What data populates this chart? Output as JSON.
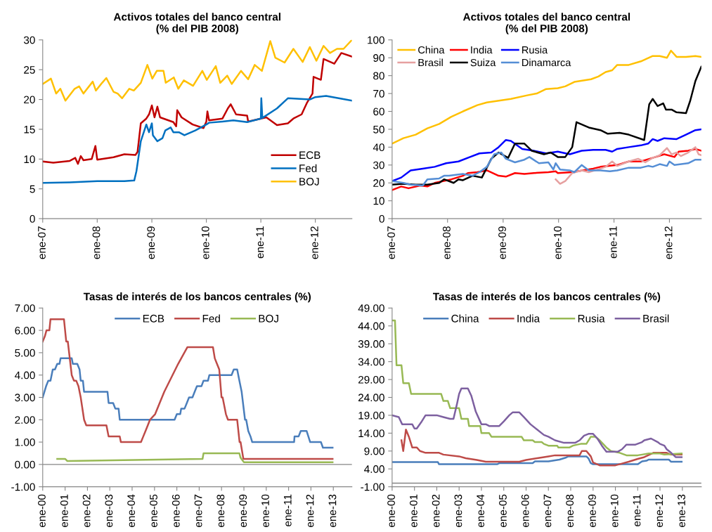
{
  "chart_data": [
    {
      "type": "line",
      "title": "Activos totales del banco central\n(% del PIB 2008)",
      "legend": "bottom right",
      "xlim": [
        "2007-01-01",
        "2012-09-02"
      ],
      "xticks": [
        {
          "value": "2007-01-01",
          "label": "ene-07"
        },
        {
          "value": "2008-01-01",
          "label": "ene-08"
        },
        {
          "value": "2009-01-01",
          "label": "ene-09"
        },
        {
          "value": "2010-01-01",
          "label": "ene-10"
        },
        {
          "value": "2011-01-01",
          "label": "ene-11"
        },
        {
          "value": "2012-01-01",
          "label": "ene-12"
        }
      ],
      "ylim": [
        0,
        30
      ],
      "yticks": [
        0,
        5,
        10,
        15,
        20,
        25,
        30
      ],
      "series": [
        {
          "name": "ECB",
          "color": "#c00000",
          "x": [
            "2007-01-01",
            "2007-03-13",
            "2007-07-01",
            "2007-08-07",
            "2007-08-25",
            "2007-09-13",
            "2007-10-01",
            "2007-11-25",
            "2007-12-20",
            "2008-01-01",
            "2008-04-19",
            "2008-07-01",
            "2008-09-13",
            "2008-09-27",
            "2008-10-19",
            "2008-11-25",
            "2008-12-13",
            "2009-01-01",
            "2009-01-19",
            "2009-02-07",
            "2009-02-25",
            "2009-05-25",
            "2009-06-13",
            "2009-06-20",
            "2009-07-19",
            "2009-10-01",
            "2009-12-13",
            "2010-01-01",
            "2010-01-08",
            "2010-01-19",
            "2010-04-19",
            "2010-05-25",
            "2010-06-13",
            "2010-07-19",
            "2010-10-01",
            "2010-10-08",
            "2011-01-01",
            "2011-02-07",
            "2011-04-19",
            "2011-07-01",
            "2011-08-07",
            "2011-10-01",
            "2011-11-07",
            "2011-12-13",
            "2011-12-20",
            "2012-02-07",
            "2012-02-25",
            "2012-05-07",
            "2012-06-23",
            "2012-09-02"
          ],
          "values": [
            9.6,
            9.4,
            9.7,
            10.2,
            9.2,
            10.5,
            9.8,
            10.0,
            12.2,
            9.9,
            10.3,
            10.8,
            10.7,
            11.2,
            16.0,
            16.8,
            17.5,
            19.0,
            17.0,
            18.8,
            17.0,
            16.2,
            15.5,
            18.2,
            17.0,
            15.8,
            15.2,
            16.3,
            18.0,
            16.5,
            16.8,
            18.5,
            19.2,
            17.5,
            17.3,
            16.3,
            16.8,
            17.0,
            15.7,
            16.0,
            16.8,
            17.5,
            19.5,
            21.0,
            23.8,
            23.3,
            26.8,
            26.0,
            27.8,
            27.2
          ]
        },
        {
          "name": "Fed",
          "color": "#0070c0",
          "x": [
            "2007-01-01",
            "2007-07-01",
            "2008-01-01",
            "2008-07-01",
            "2008-09-05",
            "2008-09-20",
            "2008-10-19",
            "2008-11-25",
            "2008-12-13",
            "2009-01-01",
            "2009-01-08",
            "2009-02-07",
            "2009-03-13",
            "2009-04-01",
            "2009-05-07",
            "2009-05-25",
            "2009-07-01",
            "2009-08-07",
            "2009-10-19",
            "2010-01-01",
            "2010-01-19",
            "2010-04-19",
            "2010-07-01",
            "2010-10-01",
            "2011-01-01",
            "2011-01-04",
            "2011-01-11",
            "2011-04-19",
            "2011-07-01",
            "2011-11-25",
            "2012-01-01",
            "2012-03-13",
            "2012-07-01",
            "2012-09-02"
          ],
          "values": [
            6.0,
            6.1,
            6.3,
            6.3,
            6.4,
            8.0,
            13.0,
            15.8,
            14.5,
            16.0,
            14.0,
            13.0,
            13.5,
            14.8,
            15.3,
            14.5,
            14.5,
            14.0,
            14.8,
            15.8,
            16.1,
            16.3,
            16.5,
            16.2,
            16.8,
            20.2,
            16.9,
            18.5,
            20.2,
            20.0,
            20.4,
            20.6,
            20.1,
            19.8
          ]
        },
        {
          "name": "BOJ",
          "color": "#ffc000",
          "x": [
            "2007-01-01",
            "2007-02-25",
            "2007-04-01",
            "2007-04-29",
            "2007-06-02",
            "2007-08-03",
            "2007-09-02",
            "2007-10-01",
            "2007-12-02",
            "2007-12-23",
            "2008-02-03",
            "2008-03-02",
            "2008-04-19",
            "2008-05-17",
            "2008-06-16",
            "2008-08-03",
            "2008-09-02",
            "2008-10-19",
            "2008-12-02",
            "2009-01-04",
            "2009-02-03",
            "2009-03-20",
            "2009-04-04",
            "2009-05-28",
            "2009-06-27",
            "2009-08-03",
            "2009-10-04",
            "2009-12-05",
            "2010-01-04",
            "2010-03-05",
            "2010-04-04",
            "2010-05-21",
            "2010-06-20",
            "2010-08-21",
            "2010-10-08",
            "2010-11-21",
            "2011-01-08",
            "2011-03-05",
            "2011-04-08",
            "2011-06-09",
            "2011-08-07",
            "2011-10-08",
            "2011-11-25",
            "2012-01-08",
            "2012-02-25",
            "2012-04-08",
            "2012-05-25",
            "2012-07-08",
            "2012-09-02"
          ],
          "values": [
            22.6,
            23.5,
            21.0,
            21.8,
            19.8,
            21.8,
            22.2,
            21.0,
            23.0,
            21.5,
            22.8,
            23.6,
            21.3,
            21.0,
            20.2,
            21.8,
            21.5,
            22.8,
            25.8,
            23.5,
            24.8,
            24.8,
            22.8,
            23.7,
            21.8,
            23.2,
            22.3,
            24.8,
            23.3,
            25.6,
            22.8,
            24.0,
            22.6,
            24.8,
            23.4,
            25.8,
            24.8,
            29.8,
            27.0,
            26.2,
            28.5,
            26.3,
            28.8,
            26.5,
            29.0,
            27.8,
            28.5,
            28.5,
            30.0
          ]
        }
      ]
    },
    {
      "type": "line",
      "title": "Activos totales del banco central\n(% del PIB 2008)",
      "legend": "top left",
      "xlim": [
        "2007-01-01",
        "2012-07-29"
      ],
      "xticks": [
        {
          "value": "2007-01-01",
          "label": "ene-07"
        },
        {
          "value": "2008-01-01",
          "label": "ene-08"
        },
        {
          "value": "2009-01-01",
          "label": "ene-09"
        },
        {
          "value": "2010-01-01",
          "label": "ene-10"
        },
        {
          "value": "2011-01-01",
          "label": "ene-11"
        },
        {
          "value": "2012-01-01",
          "label": "ene-12"
        }
      ],
      "ylim": [
        0,
        100
      ],
      "yticks": [
        0,
        10,
        20,
        30,
        40,
        50,
        60,
        70,
        80,
        90,
        100
      ],
      "series": [
        {
          "name": "China",
          "color": "#ffc000",
          "x": [
            "2007-01-01",
            "2007-03-16",
            "2007-06-05",
            "2007-08-21",
            "2007-11-07",
            "2008-01-26",
            "2008-04-11",
            "2008-07-15",
            "2008-09-16",
            "2009-02-21",
            "2009-06-09",
            "2009-08-10",
            "2009-10-11",
            "2009-12-27",
            "2010-02-14",
            "2010-04-15",
            "2010-08-03",
            "2010-09-20",
            "2010-11-07",
            "2010-12-20",
            "2011-01-22",
            "2011-04-08",
            "2011-06-27",
            "2011-09-13",
            "2011-10-29",
            "2011-12-16",
            "2012-01-11",
            "2012-02-17",
            "2012-04-19",
            "2012-06-20",
            "2012-07-29"
          ],
          "values": [
            42,
            45,
            47,
            50.5,
            53,
            57,
            60,
            63.5,
            65,
            67,
            69,
            70,
            72.5,
            73,
            74,
            76.5,
            78,
            79.5,
            82,
            83,
            86,
            86,
            88,
            91,
            91,
            90,
            94,
            90.5,
            90.5,
            91,
            90.5
          ]
        },
        {
          "name": "India",
          "color": "#ff0000",
          "x": [
            "2007-01-01",
            "2007-03-02",
            "2007-04-19",
            "2007-07-04",
            "2007-08-21",
            "2007-10-08",
            "2008-01-26",
            "2008-04-11",
            "2008-05-14",
            "2008-07-15",
            "2008-09-16",
            "2008-12-02",
            "2009-01-19",
            "2009-03-20",
            "2009-05-21",
            "2009-07-22",
            "2009-10-26",
            "2009-12-13",
            "2009-12-27",
            "2010-04-01",
            "2010-08-17",
            "2010-10-04",
            "2011-01-22",
            "2011-04-08",
            "2011-06-27",
            "2011-09-13",
            "2011-11-28",
            "2012-02-03",
            "2012-03-02",
            "2012-05-03",
            "2012-06-20",
            "2012-07-29"
          ],
          "values": [
            16,
            18,
            17,
            18.5,
            18,
            20,
            22,
            24,
            25.5,
            26,
            27,
            24,
            23.5,
            25.5,
            25,
            25.5,
            26,
            26.5,
            25.5,
            26,
            28,
            29,
            30,
            32,
            32,
            34,
            36,
            34.5,
            37.5,
            38,
            39,
            38
          ]
        },
        {
          "name": "Rusia",
          "color": "#0000ff",
          "x": [
            "2007-01-01",
            "2007-03-02",
            "2007-05-03",
            "2007-07-22",
            "2007-10-08",
            "2007-12-23",
            "2008-03-13",
            "2008-05-28",
            "2008-07-29",
            "2008-10-15",
            "2008-12-02",
            "2009-01-19",
            "2009-02-21",
            "2009-05-07",
            "2009-07-22",
            "2009-10-11",
            "2009-12-27",
            "2010-03-16",
            "2010-06-02",
            "2010-08-17",
            "2010-11-07",
            "2010-12-20",
            "2011-01-22",
            "2011-04-08",
            "2011-06-27",
            "2011-08-14",
            "2011-09-13",
            "2011-10-15",
            "2011-11-28",
            "2012-02-17",
            "2012-04-19",
            "2012-06-20",
            "2012-07-29"
          ],
          "values": [
            21,
            23,
            27,
            28,
            29,
            31,
            32,
            34.5,
            36.5,
            37,
            40,
            44,
            43.5,
            39,
            38,
            36.5,
            37.5,
            36,
            38,
            38.5,
            38.5,
            37.5,
            39,
            40,
            41,
            42,
            44.5,
            43.5,
            45,
            44.5,
            47,
            49.5,
            50
          ]
        },
        {
          "name": "Brasil",
          "color": "#e6a0a0",
          "x": [
            "2009-12-13",
            "2010-01-11",
            "2010-02-14",
            "2010-04-01",
            "2010-06-02",
            "2010-07-19",
            "2010-10-04",
            "2010-11-07",
            "2010-12-20",
            "2011-01-22",
            "2011-04-08",
            "2011-06-09",
            "2011-07-26",
            "2011-09-13",
            "2011-10-29",
            "2011-12-16",
            "2012-01-15",
            "2012-02-17",
            "2012-03-16",
            "2012-05-03",
            "2012-06-20",
            "2012-07-11",
            "2012-07-29"
          ],
          "values": [
            22,
            19.5,
            21,
            25.5,
            27,
            26,
            28,
            29,
            32,
            29.5,
            32,
            33.5,
            31.5,
            34,
            35.5,
            39.5,
            36,
            37,
            35,
            37,
            40,
            36,
            35.5
          ]
        },
        {
          "name": "Suiza",
          "color": "#000000",
          "x": [
            "2007-01-01",
            "2007-03-16",
            "2007-06-05",
            "2007-08-21",
            "2007-11-07",
            "2007-12-09",
            "2008-01-11",
            "2008-02-10",
            "2008-03-13",
            "2008-04-11",
            "2008-06-13",
            "2008-08-14",
            "2008-10-15",
            "2008-12-02",
            "2009-02-03",
            "2009-03-20",
            "2009-05-21",
            "2009-07-08",
            "2009-09-27",
            "2009-11-10",
            "2009-12-27",
            "2010-02-14",
            "2010-04-01",
            "2010-04-29",
            "2010-07-19",
            "2010-10-04",
            "2010-11-21",
            "2011-02-07",
            "2011-04-08",
            "2011-07-19",
            "2011-08-21",
            "2011-09-13",
            "2011-10-15",
            "2011-11-21",
            "2011-12-09",
            "2012-01-15",
            "2012-02-17",
            "2012-04-19",
            "2012-05-17",
            "2012-06-20",
            "2012-07-29"
          ],
          "values": [
            19,
            19.5,
            19,
            19,
            20,
            22,
            21,
            20,
            22,
            21.5,
            24,
            23,
            33.5,
            37,
            34,
            42,
            42,
            38,
            36,
            37,
            34.5,
            34.5,
            40,
            54,
            51,
            49.5,
            47.5,
            48,
            47,
            44,
            64,
            67,
            63,
            64.5,
            61,
            61,
            59.5,
            59,
            66,
            77,
            85
          ]
        },
        {
          "name": "Dinamarca",
          "color": "#558ed5",
          "x": [
            "2007-01-01",
            "2007-03-16",
            "2007-05-03",
            "2007-07-22",
            "2007-08-21",
            "2007-11-07",
            "2007-12-09",
            "2008-01-11",
            "2008-04-11",
            "2008-06-13",
            "2008-07-29",
            "2008-09-16",
            "2008-11-03",
            "2008-12-20",
            "2009-01-19",
            "2009-03-20",
            "2009-05-21",
            "2009-06-23",
            "2009-08-25",
            "2009-10-26",
            "2009-11-28",
            "2009-12-13",
            "2010-01-11",
            "2010-03-16",
            "2010-04-15",
            "2010-06-02",
            "2010-07-19",
            "2010-10-04",
            "2010-12-05",
            "2011-01-22",
            "2011-04-08",
            "2011-06-27",
            "2011-08-14",
            "2011-09-13",
            "2011-10-29",
            "2011-12-16",
            "2012-01-01",
            "2012-02-03",
            "2012-05-03",
            "2012-06-20",
            "2012-07-29"
          ],
          "values": [
            21,
            20,
            19,
            18.5,
            22,
            22.5,
            24,
            24,
            25,
            24,
            26,
            29,
            36,
            37,
            33.5,
            31.5,
            33,
            34.5,
            31,
            31.5,
            27.5,
            31,
            27.5,
            27,
            26,
            30,
            27,
            27,
            26.5,
            27,
            28.5,
            28.5,
            29.5,
            29,
            30.5,
            29.5,
            32,
            30,
            31,
            33,
            33
          ]
        }
      ]
    },
    {
      "type": "line",
      "title": "Tasas de interés de los bancos centrales (%)",
      "legend": "top",
      "xlim": [
        "2000-01-01",
        "2013-11-01"
      ],
      "xticks": [
        {
          "value": "2000-01-01",
          "label": "ene-00"
        },
        {
          "value": "2001-01-01",
          "label": "ene-01"
        },
        {
          "value": "2002-01-01",
          "label": "ene-02"
        },
        {
          "value": "2003-01-01",
          "label": "ene-03"
        },
        {
          "value": "2004-01-01",
          "label": "ene-04"
        },
        {
          "value": "2005-01-01",
          "label": "ene-05"
        },
        {
          "value": "2006-01-01",
          "label": "ene-06"
        },
        {
          "value": "2007-01-01",
          "label": "ene-07"
        },
        {
          "value": "2008-01-01",
          "label": "ene-08"
        },
        {
          "value": "2009-01-01",
          "label": "ene-09"
        },
        {
          "value": "2010-01-01",
          "label": "ene-10"
        },
        {
          "value": "2011-01-01",
          "label": "ene-11"
        },
        {
          "value": "2012-01-01",
          "label": "ene-12"
        },
        {
          "value": "2013-01-01",
          "label": "ene-13"
        }
      ],
      "ylim": [
        -1,
        7
      ],
      "yticks": [
        {
          "value": -1,
          "label": "-1.00"
        },
        {
          "value": 0,
          "label": "0.00"
        },
        {
          "value": 1,
          "label": "1.00"
        },
        {
          "value": 2,
          "label": "2.00"
        },
        {
          "value": 3,
          "label": "3.00"
        },
        {
          "value": 4,
          "label": "4.00"
        },
        {
          "value": 5,
          "label": "5.00"
        },
        {
          "value": 6,
          "label": "6.00"
        },
        {
          "value": 7,
          "label": "7.00"
        }
      ],
      "ref_lines": [
        {
          "axis": "y",
          "value": 0,
          "color": "#868686"
        }
      ],
      "series": [
        {
          "name": "ECB",
          "color": "#4a7ebb",
          "x": [
            "2000-01-01",
            "2000-02-25",
            "2000-04-01",
            "2000-05-07",
            "2000-06-13",
            "2000-07-19",
            "2000-08-25",
            "2000-10-01",
            "2000-10-19",
            "2001-04-19",
            "2001-05-07",
            "2001-07-19",
            "2001-08-25",
            "2001-09-13",
            "2001-10-19",
            "2001-11-07",
            "2002-11-25",
            "2002-12-13",
            "2003-02-25",
            "2003-04-01",
            "2003-05-25",
            "2003-06-13",
            "2005-11-25",
            "2006-01-01",
            "2006-02-25",
            "2006-03-13",
            "2006-05-07",
            "2006-06-13",
            "2006-07-19",
            "2006-09-13",
            "2006-10-19",
            "2006-11-25",
            "2007-02-07",
            "2007-03-13",
            "2007-05-25",
            "2007-06-16",
            "2008-06-13",
            "2008-07-19",
            "2008-09-13",
            "2008-10-19",
            "2008-11-25",
            "2009-01-19",
            "2009-02-07",
            "2009-03-13",
            "2009-04-19",
            "2009-05-17",
            "2011-04-01",
            "2011-04-08",
            "2011-06-13",
            "2011-07-19",
            "2011-10-22",
            "2011-12-20",
            "2012-06-13",
            "2012-07-15",
            "2012-12-20"
          ],
          "values": [
            3.0,
            3.5,
            3.75,
            3.75,
            4.25,
            4.25,
            4.5,
            4.5,
            4.75,
            4.75,
            4.5,
            4.5,
            4.25,
            3.75,
            3.75,
            3.25,
            3.25,
            2.75,
            2.75,
            2.5,
            2.5,
            2.0,
            2.0,
            2.25,
            2.25,
            2.5,
            2.5,
            2.75,
            3.0,
            3.0,
            3.25,
            3.5,
            3.5,
            3.75,
            3.75,
            4.0,
            4.0,
            4.25,
            4.25,
            3.75,
            3.25,
            2.0,
            2.0,
            1.5,
            1.25,
            1.0,
            1.0,
            1.25,
            1.25,
            1.5,
            1.5,
            1.0,
            1.0,
            0.75,
            0.75
          ]
        },
        {
          "name": "Fed",
          "color": "#be4b48",
          "x": [
            "2000-01-01",
            "2000-02-07",
            "2000-03-02",
            "2000-04-19",
            "2000-05-07",
            "2000-12-13",
            "2001-01-19",
            "2001-02-14",
            "2001-04-19",
            "2001-05-25",
            "2001-07-01",
            "2001-08-07",
            "2001-09-13",
            "2001-11-07",
            "2001-12-13",
            "2002-11-07",
            "2002-12-13",
            "2003-06-13",
            "2003-07-01",
            "2004-05-25",
            "2004-07-01",
            "2004-08-07",
            "2004-09-13",
            "2004-10-19",
            "2005-01-11",
            "2005-06-09",
            "2006-01-22",
            "2006-06-23",
            "2007-08-14",
            "2007-09-13",
            "2007-10-19",
            "2007-11-25",
            "2008-01-01",
            "2008-01-19",
            "2008-03-13",
            "2008-04-15",
            "2008-09-13",
            "2008-10-22",
            "2008-11-07",
            "2008-12-23",
            "2012-12-20"
          ],
          "values": [
            5.5,
            5.75,
            6.0,
            6.0,
            6.5,
            6.5,
            5.5,
            5.5,
            4.0,
            3.75,
            3.75,
            3.5,
            3.0,
            2.0,
            1.75,
            1.75,
            1.25,
            1.25,
            1.0,
            1.0,
            1.25,
            1.5,
            1.75,
            2.0,
            2.25,
            3.25,
            4.5,
            5.25,
            5.25,
            4.75,
            4.5,
            4.25,
            3.0,
            3.0,
            2.25,
            2.0,
            2.0,
            1.0,
            1.0,
            0.25,
            0.25
          ]
        },
        {
          "name": "BOJ",
          "color": "#98b954",
          "x": [
            "2000-08-25",
            "2001-01-01",
            "2001-02-07",
            "2007-02-25",
            "2007-03-13",
            "2008-10-19",
            "2008-11-07",
            "2009-01-01",
            "2012-12-20"
          ],
          "values": [
            0.25,
            0.25,
            0.15,
            0.25,
            0.5,
            0.5,
            0.3,
            0.1,
            0.1
          ]
        }
      ]
    },
    {
      "type": "line",
      "title": "Tasas de interés de los bancos centrales (%)",
      "legend": "top",
      "xlim": [
        "2000-01-01",
        "2013-11-07"
      ],
      "xticks": [
        {
          "value": "2000-01-01",
          "label": "ene-00"
        },
        {
          "value": "2001-01-01",
          "label": "ene-01"
        },
        {
          "value": "2002-01-01",
          "label": "ene-02"
        },
        {
          "value": "2003-01-01",
          "label": "ene-03"
        },
        {
          "value": "2004-01-01",
          "label": "ene-04"
        },
        {
          "value": "2005-01-01",
          "label": "ene-05"
        },
        {
          "value": "2006-01-01",
          "label": "ene-06"
        },
        {
          "value": "2007-01-01",
          "label": "ene-07"
        },
        {
          "value": "2008-01-01",
          "label": "ene-08"
        },
        {
          "value": "2009-01-01",
          "label": "ene-09"
        },
        {
          "value": "2010-01-01",
          "label": "ene-10"
        },
        {
          "value": "2011-01-01",
          "label": "ene-11"
        },
        {
          "value": "2012-01-01",
          "label": "ene-12"
        },
        {
          "value": "2013-01-01",
          "label": "ene-13"
        }
      ],
      "ylim": [
        -1,
        49
      ],
      "yticks": [
        {
          "value": -1,
          "label": "-1.00"
        },
        {
          "value": 4,
          "label": "4.00"
        },
        {
          "value": 9,
          "label": "9.00"
        },
        {
          "value": 14,
          "label": "14.00"
        },
        {
          "value": 19,
          "label": "19.00"
        },
        {
          "value": 24,
          "label": "24.00"
        },
        {
          "value": 29,
          "label": "29.00"
        },
        {
          "value": 34,
          "label": "34.00"
        },
        {
          "value": 39,
          "label": "39.00"
        },
        {
          "value": 44,
          "label": "44.00"
        },
        {
          "value": 49,
          "label": "49.00"
        }
      ],
      "ref_lines": [
        {
          "axis": "y",
          "value": 0,
          "color": "#868686"
        }
      ],
      "series": [
        {
          "name": "China",
          "color": "#4a7ebb",
          "x": [
            "2000-01-01",
            "2002-01-19",
            "2002-02-07",
            "2004-09-13",
            "2004-10-19",
            "2006-04-19",
            "2006-05-25",
            "2007-01-01",
            "2007-07-01",
            "2007-10-19",
            "2007-11-25",
            "2008-09-13",
            "2008-10-19",
            "2008-11-25",
            "2009-01-01",
            "2011-01-01",
            "2011-03-13",
            "2011-05-25",
            "2011-07-01",
            "2012-05-25",
            "2012-07-01",
            "2012-12-20"
          ],
          "values": [
            5.9,
            5.9,
            5.3,
            5.3,
            5.6,
            5.6,
            6.1,
            6.1,
            6.6,
            7.2,
            7.5,
            7.5,
            6.9,
            5.6,
            5.3,
            5.3,
            6.1,
            6.3,
            6.6,
            6.6,
            6.0,
            6.0
          ]
        },
        {
          "name": "India",
          "color": "#be4b48",
          "x": [
            "2000-06-02",
            "2000-07-01",
            "2000-08-14",
            "2000-10-01",
            "2000-11-25",
            "2001-02-07",
            "2001-04-01",
            "2001-07-01",
            "2002-02-07",
            "2002-04-19",
            "2003-01-01",
            "2003-04-19",
            "2003-10-19",
            "2004-03-13",
            "2005-09-13",
            "2006-01-01",
            "2006-07-01",
            "2007-01-01",
            "2007-04-19",
            "2008-05-25",
            "2008-07-01",
            "2008-09-13",
            "2008-11-25",
            "2009-01-01",
            "2009-04-19",
            "2010-01-01",
            "2010-04-19",
            "2010-08-07",
            "2011-01-01",
            "2011-04-19",
            "2011-09-13",
            "2012-04-19",
            "2012-07-01",
            "2012-12-20"
          ],
          "values": [
            12,
            9,
            15,
            13,
            10,
            10,
            9,
            8.5,
            8.5,
            8,
            7.5,
            7,
            6.5,
            6,
            6,
            6.5,
            7,
            7.5,
            7.8,
            7.8,
            9,
            9,
            7.5,
            5.8,
            5,
            5,
            5.5,
            6,
            6.8,
            7.3,
            8.5,
            8.5,
            8,
            8
          ]
        },
        {
          "name": "Rusia",
          "color": "#98b954",
          "x": [
            "2000-01-01",
            "2000-02-17",
            "2000-03-13",
            "2000-06-02",
            "2000-07-01",
            "2000-10-01",
            "2000-11-07",
            "2002-03-13",
            "2002-04-19",
            "2002-07-01",
            "2002-08-07",
            "2003-01-01",
            "2003-02-07",
            "2003-05-25",
            "2003-06-13",
            "2003-12-13",
            "2004-01-01",
            "2004-05-07",
            "2004-06-13",
            "2005-10-19",
            "2005-11-25",
            "2006-04-19",
            "2006-05-25",
            "2006-09-13",
            "2006-10-19",
            "2007-01-01",
            "2007-05-25",
            "2007-06-13",
            "2007-12-13",
            "2008-02-07",
            "2008-04-19",
            "2008-06-13",
            "2008-09-13",
            "2008-11-25",
            "2009-02-07",
            "2009-04-19",
            "2009-08-07",
            "2009-10-19",
            "2010-03-13",
            "2010-07-01",
            "2011-01-01",
            "2011-03-13",
            "2011-07-01",
            "2012-01-01",
            "2012-03-13",
            "2012-12-20"
          ],
          "values": [
            45.5,
            45.5,
            33,
            33,
            28,
            28,
            25,
            25,
            23,
            23,
            21,
            21,
            18,
            18,
            16,
            16,
            14,
            14,
            13,
            13,
            12,
            12,
            11.5,
            11.5,
            11,
            10.5,
            10.5,
            10,
            10,
            10.5,
            10.8,
            11,
            11,
            13,
            13,
            12,
            10,
            9,
            8.5,
            7.8,
            7.8,
            8,
            8.3,
            8.3,
            8,
            8.3
          ]
        },
        {
          "name": "Brasil",
          "color": "#7d60a0",
          "x": [
            "2000-01-01",
            "2000-04-19",
            "2000-06-13",
            "2000-11-25",
            "2001-01-01",
            "2001-02-07",
            "2001-04-19",
            "2001-07-01",
            "2002-01-01",
            "2002-04-19",
            "2002-08-07",
            "2002-10-01",
            "2002-11-25",
            "2003-01-01",
            "2003-02-07",
            "2003-05-25",
            "2003-07-19",
            "2003-10-01",
            "2004-01-01",
            "2004-03-13",
            "2004-05-07",
            "2004-10-19",
            "2005-01-01",
            "2005-04-01",
            "2005-05-25",
            "2005-09-13",
            "2005-11-25",
            "2006-03-13",
            "2006-07-01",
            "2006-10-19",
            "2007-01-01",
            "2007-04-19",
            "2007-09-13",
            "2008-03-13",
            "2008-05-25",
            "2008-08-07",
            "2008-10-19",
            "2009-01-01",
            "2009-03-13",
            "2009-05-25",
            "2009-08-07",
            "2010-02-07",
            "2010-04-19",
            "2010-07-01",
            "2010-11-25",
            "2011-03-13",
            "2011-04-19",
            "2011-08-07",
            "2011-11-25",
            "2012-01-01",
            "2012-03-13",
            "2012-04-19",
            "2012-07-01",
            "2012-09-13",
            "2012-12-20"
          ],
          "values": [
            19,
            18.5,
            16.5,
            16.5,
            15.3,
            15.3,
            17,
            19,
            19,
            18.5,
            18,
            18,
            22,
            25,
            26.5,
            26.5,
            24.5,
            20,
            16.5,
            16.5,
            16,
            16,
            17.3,
            19,
            19.8,
            19.8,
            18.5,
            16.5,
            15,
            13.5,
            13,
            12,
            11.3,
            11.3,
            12,
            13.3,
            13.8,
            13.8,
            12.5,
            10.5,
            8.8,
            8.8,
            9.5,
            10.8,
            10.8,
            11.5,
            12,
            12.5,
            11.5,
            11,
            10.5,
            9.5,
            8.5,
            7.3,
            7.3
          ]
        }
      ]
    }
  ]
}
